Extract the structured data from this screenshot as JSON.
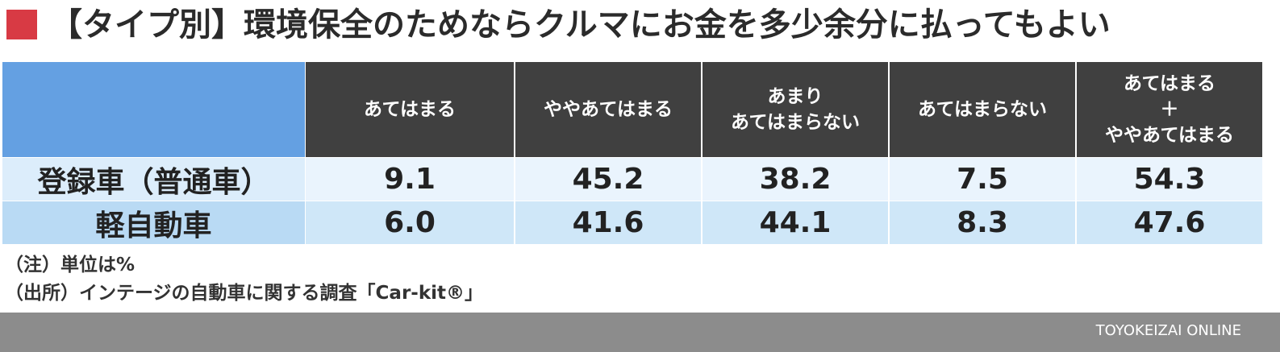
{
  "header": {
    "title": "【タイプ別】環境保全のためならクルマにお金を多少余分に払ってもよい"
  },
  "table": {
    "columns": [
      [
        "あてはまる"
      ],
      [
        "ややあてはまる"
      ],
      [
        "あまり",
        "あてはまらない"
      ],
      [
        "あてはまらない"
      ],
      [
        "あてはまる",
        "＋",
        "ややあてはまる"
      ]
    ],
    "rows": [
      [
        "登録車（普通車）",
        "9.1",
        "45.2",
        "38.2",
        "7.5",
        "54.3"
      ],
      [
        "軽自動車",
        "6.0",
        "41.6",
        "44.1",
        "8.3",
        "47.6"
      ]
    ]
  },
  "notes": [
    "（注）単位は%",
    "（出所）インテージの自動車に関する調査「Car-kit®」"
  ],
  "footer": {
    "brand": "TOYOKEIZAI ONLINE"
  }
}
